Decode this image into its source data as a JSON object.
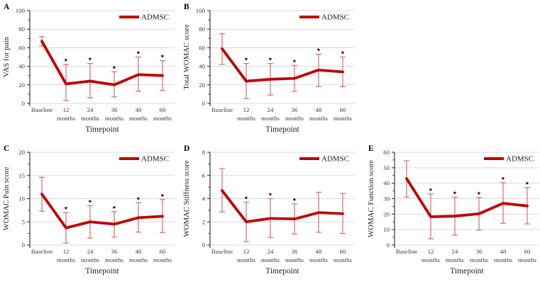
{
  "figure": {
    "background": "#ffffff",
    "legend_label": "ADMSC",
    "significance_marker": "★"
  },
  "colors": {
    "line": "#c00000",
    "error_bar": "#d97575",
    "gridline": "#d9d9d9",
    "axis": "#262626",
    "tick_text": "#3a3a3a",
    "title_text": "#1f1f1f",
    "star": "#111111"
  },
  "chart_data": [
    {
      "panel": "A",
      "type": "line",
      "ylabel": "VAS for pain",
      "xlabel": "Timepoint",
      "ylim": [
        0,
        100
      ],
      "ytick_step": 20,
      "yminor_step": 10,
      "grid": true,
      "legend_position": "top-right",
      "categories": [
        [
          "Baseline"
        ],
        [
          "12",
          "months"
        ],
        [
          "24",
          "months"
        ],
        [
          "36",
          "months"
        ],
        [
          "48",
          "months"
        ],
        [
          "60",
          "months"
        ]
      ],
      "series": [
        {
          "name": "ADMSC",
          "values": [
            67,
            21,
            24,
            20,
            31,
            30
          ],
          "err_lower": [
            62,
            3,
            6,
            7,
            13,
            14
          ],
          "err_upper": [
            72,
            42,
            43,
            34,
            50,
            46
          ],
          "significant": [
            false,
            true,
            true,
            true,
            true,
            true
          ]
        }
      ]
    },
    {
      "panel": "B",
      "type": "line",
      "ylabel": "Total WOMAC score",
      "xlabel": "Timepoint",
      "ylim": [
        0,
        100
      ],
      "ytick_step": 20,
      "yminor_step": 10,
      "grid": true,
      "legend_position": "top-right",
      "categories": [
        [
          "Baseline"
        ],
        [
          "12",
          "months"
        ],
        [
          "24",
          "months"
        ],
        [
          "36",
          "months"
        ],
        [
          "48",
          "months"
        ],
        [
          "60",
          "months"
        ]
      ],
      "series": [
        {
          "name": "ADMSC",
          "values": [
            59,
            24,
            26,
            27,
            36,
            34
          ],
          "err_lower": [
            42,
            5,
            9,
            13,
            18,
            18
          ],
          "err_upper": [
            75,
            43,
            43,
            41,
            53,
            50
          ],
          "significant": [
            false,
            true,
            true,
            true,
            true,
            true
          ]
        }
      ]
    },
    {
      "panel": "C",
      "type": "line",
      "ylabel": "WOMAC Pain score",
      "xlabel": "Timepoint",
      "ylim": [
        0,
        20
      ],
      "ytick_step": 5,
      "yminor_step": 2.5,
      "grid": true,
      "legend_position": "top-right",
      "categories": [
        [
          "Baseline"
        ],
        [
          "12",
          "months"
        ],
        [
          "24",
          "months"
        ],
        [
          "36",
          "months"
        ],
        [
          "48",
          "months"
        ],
        [
          "60",
          "months"
        ]
      ],
      "series": [
        {
          "name": "ADMSC",
          "values": [
            11,
            3.7,
            5,
            4.5,
            5.9,
            6.2
          ],
          "err_lower": [
            7.3,
            0.4,
            1.5,
            1.7,
            2.8,
            2.7
          ],
          "err_upper": [
            14.6,
            7,
            8.5,
            7.2,
            9.1,
            9.8
          ],
          "significant": [
            false,
            true,
            true,
            true,
            true,
            true
          ]
        }
      ]
    },
    {
      "panel": "D",
      "type": "line",
      "ylabel": "WOMAC Stiffness score",
      "xlabel": "Timepoint",
      "ylim": [
        0,
        8
      ],
      "ytick_step": 2,
      "yminor_step": 1,
      "grid": true,
      "legend_position": "top-right",
      "categories": [
        [
          "Baseline"
        ],
        [
          "12",
          "months"
        ],
        [
          "24",
          "months"
        ],
        [
          "36",
          "months"
        ],
        [
          "48",
          "months"
        ],
        [
          "60",
          "months"
        ]
      ],
      "series": [
        {
          "name": "ADMSC",
          "values": [
            4.7,
            2.0,
            2.3,
            2.25,
            2.8,
            2.7
          ],
          "err_lower": [
            2.85,
            0.3,
            0.65,
            0.95,
            1.1,
            1.0
          ],
          "err_upper": [
            6.6,
            3.7,
            4.0,
            3.55,
            4.55,
            4.45
          ],
          "significant": [
            false,
            true,
            true,
            true,
            false,
            false
          ]
        }
      ]
    },
    {
      "panel": "E",
      "type": "line",
      "ylabel": "WOMAC Function score",
      "xlabel": "Timepoint",
      "ylim": [
        0,
        60
      ],
      "ytick_step": 10,
      "yminor_step": 5,
      "grid": true,
      "legend_position": "top-right",
      "categories": [
        [
          "Baseline"
        ],
        [
          "12",
          "months"
        ],
        [
          "24",
          "months"
        ],
        [
          "36",
          "months"
        ],
        [
          "48",
          "months"
        ],
        [
          "60",
          "months"
        ]
      ],
      "series": [
        {
          "name": "ADMSC",
          "values": [
            43,
            18.3,
            18.7,
            20.2,
            27,
            25.3
          ],
          "err_lower": [
            31,
            4,
            6.5,
            9.7,
            14,
            13.7
          ],
          "err_upper": [
            54.5,
            33,
            31,
            30.8,
            40.3,
            37.2
          ],
          "significant": [
            false,
            true,
            true,
            true,
            true,
            true
          ]
        }
      ]
    }
  ]
}
